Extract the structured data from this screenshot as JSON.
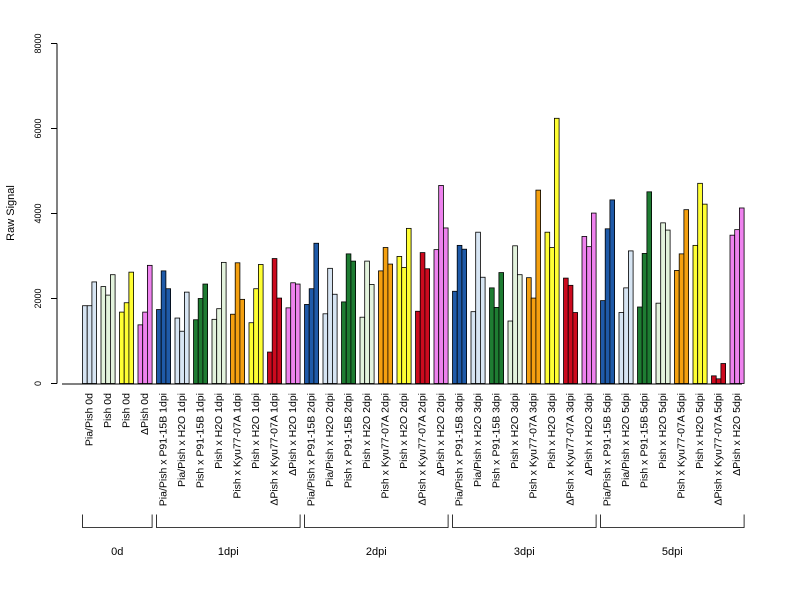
{
  "chart_data": {
    "type": "bar",
    "ylabel": "Raw Signal",
    "ylim": [
      0,
      8000
    ],
    "yticks": [
      0,
      2000,
      4000,
      6000,
      8000
    ],
    "colors": {
      "lightblue": "#d7e5f3",
      "yellow": "#ffff33",
      "violet": "#ee82ee",
      "blue": "#1f5aa8",
      "green": "#1e7c32",
      "lightgreen": "#e3f3dd",
      "orange": "#f4a010",
      "red": "#cc0a1e"
    },
    "categories": [
      {
        "label": "Pia/Pish 0d",
        "color": "lightblue",
        "values": [
          1830,
          1830,
          2390
        ]
      },
      {
        "label": "Pish 0d",
        "color": "lightgreen",
        "values": [
          2280,
          2080,
          2560
        ]
      },
      {
        "label": "Pish 0d",
        "color": "yellow",
        "values": [
          1680,
          1900,
          2620
        ]
      },
      {
        "label": "ΔPish 0d",
        "color": "violet",
        "values": [
          1380,
          1680,
          2780
        ]
      },
      {
        "label": "Pia/Pish x P91-15B 1dpi",
        "color": "blue",
        "values": [
          1740,
          2650,
          2230
        ]
      },
      {
        "label": "Pia/Pish x H2O 1dpi",
        "color": "lightblue",
        "values": [
          1540,
          1230,
          2150
        ]
      },
      {
        "label": "Pish x P91-15B 1dpi",
        "color": "green",
        "values": [
          1500,
          2000,
          2340
        ]
      },
      {
        "label": "Pish x H2O 1dpi",
        "color": "lightgreen",
        "values": [
          1510,
          1760,
          2850
        ]
      },
      {
        "label": "Pish x Kyu77-07A 1dpi",
        "color": "orange",
        "values": [
          1630,
          2840,
          1980
        ]
      },
      {
        "label": "Pish x H2O 1dpi",
        "color": "yellow",
        "values": [
          1430,
          2230,
          2800
        ]
      },
      {
        "label": "ΔPish x Kyu77-07A 1dpi",
        "color": "red",
        "values": [
          740,
          2940,
          2010
        ]
      },
      {
        "label": "ΔPish x H2O 1dpi",
        "color": "violet",
        "values": [
          1780,
          2370,
          2340
        ]
      },
      {
        "label": "Pia/Pish x P91-15B 2dpi",
        "color": "blue",
        "values": [
          1860,
          2230,
          3300
        ]
      },
      {
        "label": "Pia/Pish x H2O 2dpi",
        "color": "lightblue",
        "values": [
          1640,
          2710,
          2100
        ]
      },
      {
        "label": "Pish x P91-15B 2dpi",
        "color": "green",
        "values": [
          1920,
          3050,
          2880
        ]
      },
      {
        "label": "Pish x H2O 2dpi",
        "color": "lightgreen",
        "values": [
          1560,
          2880,
          2330
        ]
      },
      {
        "label": "Pish x Kyu77-07A 2dpi",
        "color": "orange",
        "values": [
          2650,
          3200,
          2810
        ]
      },
      {
        "label": "Pish x H2O 2dpi",
        "color": "yellow",
        "values": [
          2990,
          2730,
          3650
        ]
      },
      {
        "label": "ΔPish x Kyu77-07A 2dpi",
        "color": "red",
        "values": [
          1700,
          3080,
          2700
        ]
      },
      {
        "label": "ΔPish x H2O 2dpi",
        "color": "violet",
        "values": [
          3150,
          4660,
          3660
        ]
      },
      {
        "label": "Pia/Pish x P91-15B 3dpi",
        "color": "blue",
        "values": [
          2170,
          3250,
          3160
        ]
      },
      {
        "label": "Pia/Pish x H2O 3dpi",
        "color": "lightblue",
        "values": [
          1690,
          3560,
          2500
        ]
      },
      {
        "label": "Pish x P91-15B 3dpi",
        "color": "green",
        "values": [
          2250,
          1790,
          2610
        ]
      },
      {
        "label": "Pish x H2O 3dpi",
        "color": "lightgreen",
        "values": [
          1470,
          3240,
          2560
        ]
      },
      {
        "label": "Pish x Kyu77-07A 3dpi",
        "color": "orange",
        "values": [
          2490,
          2010,
          4550
        ]
      },
      {
        "label": "Pish x H2O 3dpi",
        "color": "yellow",
        "values": [
          3560,
          3200,
          6240
        ]
      },
      {
        "label": "ΔPish x Kyu77-07A 3dpi",
        "color": "red",
        "values": [
          2480,
          2310,
          1670
        ]
      },
      {
        "label": "ΔPish x H2O 3dpi",
        "color": "violet",
        "values": [
          3460,
          3220,
          4010
        ]
      },
      {
        "label": "Pia/Pish x P91-15B 5dpi",
        "color": "blue",
        "values": [
          1950,
          3640,
          4320
        ]
      },
      {
        "label": "Pia/Pish x H2O 5dpi",
        "color": "lightblue",
        "values": [
          1670,
          2250,
          3120
        ]
      },
      {
        "label": "Pish x P91-15B 5dpi",
        "color": "green",
        "values": [
          1800,
          3060,
          4510
        ]
      },
      {
        "label": "Pish x H2O 5dpi",
        "color": "lightgreen",
        "values": [
          1890,
          3780,
          3610
        ]
      },
      {
        "label": "Pish x Kyu77-07A 5dpi",
        "color": "orange",
        "values": [
          2660,
          3050,
          4090
        ]
      },
      {
        "label": "Pish x H2O 5dpi",
        "color": "yellow",
        "values": [
          3250,
          4710,
          4220
        ]
      },
      {
        "label": "ΔPish x Kyu77-07A 5dpi",
        "color": "red",
        "values": [
          180,
          110,
          470
        ]
      },
      {
        "label": "ΔPish x H2O 5dpi",
        "color": "violet",
        "values": [
          3490,
          3620,
          4130
        ]
      }
    ],
    "groups": [
      {
        "label": "0d",
        "start": 0,
        "end": 3
      },
      {
        "label": "1dpi",
        "start": 4,
        "end": 11
      },
      {
        "label": "2dpi",
        "start": 12,
        "end": 19
      },
      {
        "label": "3dpi",
        "start": 20,
        "end": 27
      },
      {
        "label": "5dpi",
        "start": 28,
        "end": 35
      }
    ]
  }
}
